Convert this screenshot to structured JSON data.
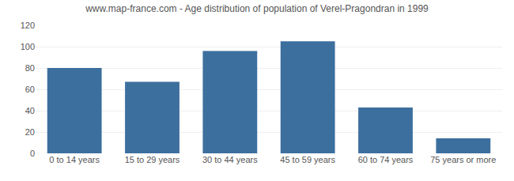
{
  "chart_data": {
    "type": "bar",
    "title": "www.map-france.com - Age distribution of population of Verel-Pragondran in 1999",
    "categories": [
      "0 to 14 years",
      "15 to 29 years",
      "30 to 44 years",
      "45 to 59 years",
      "60 to 74 years",
      "75 years or more"
    ],
    "values": [
      80,
      67,
      96,
      105,
      43,
      14
    ],
    "color": "#3d6f9e",
    "ylim": [
      0,
      120
    ],
    "yticks": [
      0,
      20,
      40,
      60,
      80,
      100,
      120
    ],
    "grid": true
  }
}
